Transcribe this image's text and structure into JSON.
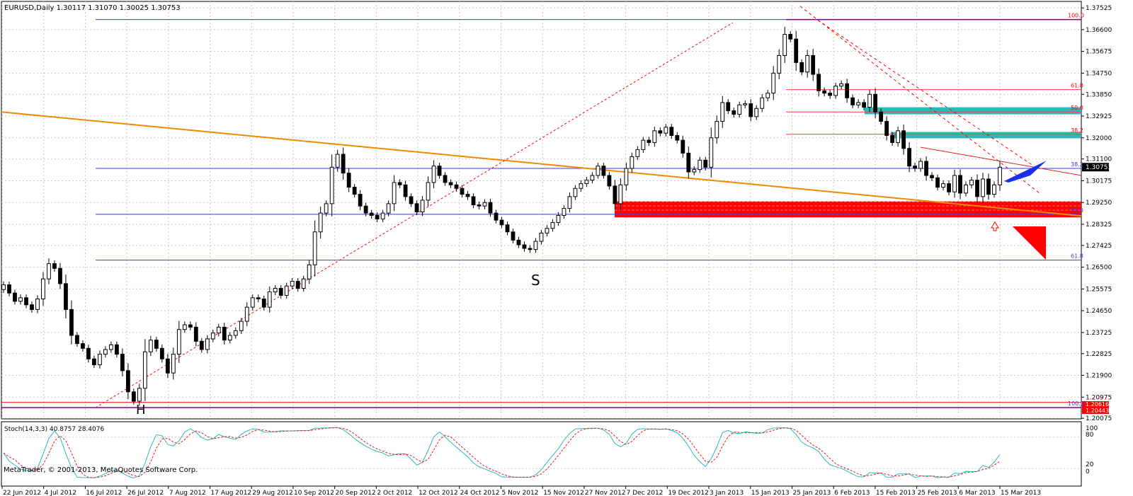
{
  "header": {
    "symbol_title": "EURUSD,Daily  1.30117 1.31070 1.30025 1.30753"
  },
  "indicator": {
    "label": "Stoch(14,3,3) 40.8757 28.4076",
    "levels": [
      "100",
      "80",
      "20",
      "0"
    ]
  },
  "footer": {
    "copyright": "MetaTrader, © 2001-2013, MetaQuotes Software Corp."
  },
  "colors": {
    "bull": "#ffffff",
    "bear": "#000000",
    "grid": "#c8c8c8",
    "fib_line": "#3a3af0",
    "fib_text_red": "#ff0000",
    "trend_orange": "#f08a00",
    "zone_red": "#ff0000",
    "zone_cyan": "#2fb8b8",
    "arrow_blue": "#1a2ef0",
    "stoch_main": "#2fb8b8",
    "stoch_signal": "#e02020",
    "price_highlight_bg": "#000000"
  },
  "chart_data": {
    "type": "candlestick",
    "symbol": "EURUSD",
    "timeframe": "Daily",
    "last_ohlc": {
      "open": 1.30117,
      "high": 1.3107,
      "low": 1.30025,
      "close": 1.30753
    },
    "y_ticks": [
      "1.37525",
      "1.36600",
      "1.35675",
      "1.34750",
      "1.33850",
      "1.32925",
      "1.32000",
      "1.31100",
      "1.30175",
      "1.29250",
      "1.28325",
      "1.27425",
      "1.26500",
      "1.25575",
      "1.24650",
      "1.23725",
      "1.22825",
      "1.21900",
      "1.20975",
      "1.20075"
    ],
    "x_ticks": [
      "22 Jun 2012",
      "4 Jul 2012",
      "16 Jul 2012",
      "26 Jul 2012",
      "7 Aug 2012",
      "17 Aug 2012",
      "29 Aug 2012",
      "10 Sep 2012",
      "20 Sep 2012",
      "2 Oct 2012",
      "12 Oct 2012",
      "24 Oct 2012",
      "5 Nov 2012",
      "15 Nov 2012",
      "27 Nov 2012",
      "7 Dec 2012",
      "19 Dec 2012",
      "3 Jan 2013",
      "15 Jan 2013",
      "25 Jan 2013",
      "6 Feb 2013",
      "15 Feb 2013",
      "25 Feb 2013",
      "6 Mar 2013",
      "15 Mar 2013"
    ],
    "ylim": [
      1.2005,
      1.378
    ],
    "current_price_label": "1.30753",
    "bottom_price_labels": [
      "1.20616",
      "1.20443"
    ],
    "annotations": {
      "fib_left": [
        "38.2",
        "50.0",
        "61.8"
      ],
      "fib_right": [
        "100.0",
        "61.8",
        "50.0",
        "38.2"
      ],
      "fib_right_extra": [
        "38.2",
        "50.0"
      ],
      "fib_bottom": "100.0",
      "pattern_labels": [
        "H",
        "S"
      ]
    },
    "levels": {
      "fib_100_top": 1.3703,
      "fib_38": 1.307,
      "fib_50": 1.2875,
      "fib_61": 1.268,
      "fib_100_bottom": 1.2053,
      "magenta_top": 1.3703,
      "magenta_bottom": 1.2053,
      "red_61_8": 1.3405,
      "red_50": 1.331,
      "red_38_2": 1.3215
    },
    "closes": [
      1.2575,
      1.254,
      1.2505,
      1.252,
      1.249,
      1.247,
      1.2515,
      1.26,
      1.2665,
      1.2645,
      1.258,
      1.247,
      1.236,
      1.2325,
      1.2305,
      1.226,
      1.2235,
      1.228,
      1.23,
      1.232,
      1.228,
      1.221,
      1.212,
      1.208,
      1.2135,
      1.229,
      1.234,
      1.2305,
      1.226,
      1.22,
      1.228,
      1.2385,
      1.2405,
      1.2395,
      1.2335,
      1.23,
      1.2345,
      1.237,
      1.2395,
      1.234,
      1.236,
      1.238,
      1.242,
      1.248,
      1.252,
      1.2515,
      1.248,
      1.2545,
      1.256,
      1.253,
      1.257,
      1.259,
      1.256,
      1.26,
      1.266,
      1.28,
      1.288,
      1.292,
      1.3075,
      1.313,
      1.305,
      1.299,
      1.296,
      1.291,
      1.288,
      1.287,
      1.2855,
      1.288,
      1.292,
      1.301,
      1.3,
      1.295,
      1.292,
      1.2885,
      1.2935,
      1.301,
      1.308,
      1.304,
      1.301,
      1.3,
      1.2985,
      1.296,
      1.295,
      1.2915,
      1.291,
      1.2925,
      1.288,
      1.285,
      1.283,
      1.28,
      1.2765,
      1.2745,
      1.273,
      1.2725,
      1.276,
      1.2795,
      1.2815,
      1.284,
      1.287,
      1.29,
      1.295,
      1.2985,
      1.3005,
      1.302,
      1.304,
      1.308,
      1.304,
      1.2995,
      1.292,
      1.3,
      1.307,
      1.312,
      1.315,
      1.319,
      1.318,
      1.323,
      1.322,
      1.3245,
      1.321,
      1.319,
      1.3135,
      1.3055,
      1.3065,
      1.3105,
      1.3075,
      1.32,
      1.327,
      1.335,
      1.3315,
      1.33,
      1.334,
      1.3345,
      1.329,
      1.3325,
      1.337,
      1.339,
      1.3475,
      1.355,
      1.364,
      1.362,
      1.352,
      1.348,
      1.355,
      1.347,
      1.34,
      1.339,
      1.338,
      1.342,
      1.343,
      1.337,
      1.334,
      1.335,
      1.333,
      1.3385,
      1.331,
      1.327,
      1.321,
      1.318,
      1.323,
      1.3155,
      1.308,
      1.307,
      1.31,
      1.304,
      1.303,
      1.299,
      1.3005,
      1.297,
      1.304,
      1.2965,
      1.3,
      1.302,
      1.295,
      1.3025,
      1.296,
      1.3,
      1.3075
    ]
  }
}
